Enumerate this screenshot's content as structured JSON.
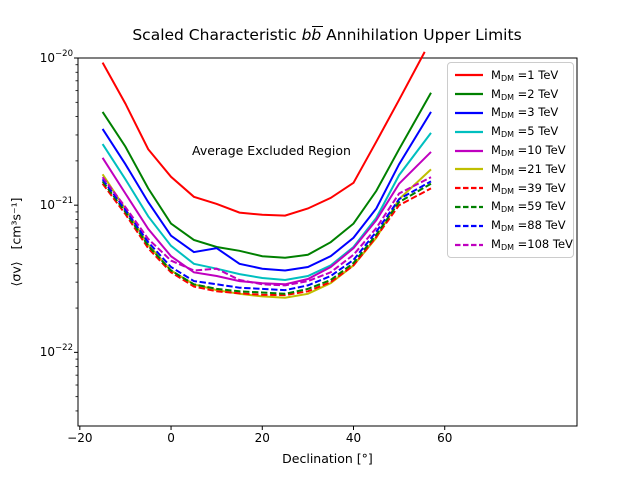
{
  "figure": {
    "title": {
      "prefix": "Scaled Characteristic ",
      "math_b1": "b",
      "math_b2": "b",
      "suffix": " Annihilation Upper Limits"
    },
    "annotation": "Average Excluded Region",
    "xlabel": "Declination [°]",
    "ylabel": "⟨σv⟩   [cm³s⁻¹]"
  },
  "chart_data": {
    "type": "line",
    "title": "Scaled Characteristic bb̄ Annihilation Upper Limits",
    "xlabel": "Declination [°]",
    "ylabel": "⟨σv⟩ [cm³ s⁻¹]",
    "xscale": "linear",
    "yscale": "log",
    "xlim": [
      -20.4,
      89.0
    ],
    "ylim": [
      3.16e-23,
      1e-20
    ],
    "grid": false,
    "legend_position": "upper right",
    "annotation_text": "Average Excluded Region",
    "xticks": [
      {
        "v": -20,
        "label": "−20"
      },
      {
        "v": 0,
        "label": "0"
      },
      {
        "v": 20,
        "label": "20"
      },
      {
        "v": 40,
        "label": "40"
      },
      {
        "v": 60,
        "label": "60"
      }
    ],
    "yticks": [
      {
        "v": 1e-20,
        "base": "10",
        "exp": "−20"
      },
      {
        "v": 1e-21,
        "base": "10",
        "exp": "−21"
      },
      {
        "v": 1e-22,
        "base": "10",
        "exp": "−22"
      }
    ],
    "series": [
      {
        "label_prefix": "M",
        "label_sub": "DM",
        "label_rest": " =1 TeV",
        "color": "#ff0000",
        "dash": false,
        "x": [
          -15,
          -10,
          -5,
          0,
          5,
          10,
          15,
          20,
          25,
          30,
          35,
          40,
          45,
          50,
          55.6
        ],
        "y": [
          9.3e-21,
          4.9e-21,
          2.4e-21,
          1.56e-21,
          1.14e-21,
          1.02e-21,
          8.9e-22,
          8.6e-22,
          8.5e-22,
          9.5e-22,
          1.12e-21,
          1.42e-21,
          2.7e-21,
          5.2e-21,
          1.1e-20
        ]
      },
      {
        "label_prefix": "M",
        "label_sub": "DM",
        "label_rest": " =2 TeV",
        "color": "#008000",
        "dash": false,
        "x": [
          -15,
          -10,
          -5,
          0,
          5,
          10,
          15,
          20,
          25,
          30,
          35,
          40,
          45,
          50,
          57
        ],
        "y": [
          4.3e-21,
          2.5e-21,
          1.3e-21,
          7.5e-22,
          5.8e-22,
          5.2e-22,
          4.9e-22,
          4.5e-22,
          4.4e-22,
          4.6e-22,
          5.6e-22,
          7.5e-22,
          1.25e-21,
          2.4e-21,
          5.8e-21
        ]
      },
      {
        "label_prefix": "M",
        "label_sub": "DM",
        "label_rest": " =3 TeV",
        "color": "#0000ff",
        "dash": false,
        "x": [
          -15,
          -10,
          -5,
          0,
          5,
          10,
          15,
          20,
          25,
          30,
          35,
          40,
          45,
          50,
          57
        ],
        "y": [
          3.3e-21,
          1.9e-21,
          1.05e-21,
          6.2e-22,
          4.8e-22,
          5.1e-22,
          4e-22,
          3.7e-22,
          3.6e-22,
          3.8e-22,
          4.5e-22,
          6e-22,
          9.5e-22,
          1.9e-21,
          4.3e-21
        ]
      },
      {
        "label_prefix": "M",
        "label_sub": "DM",
        "label_rest": " =5 TeV",
        "color": "#00bfbf",
        "dash": false,
        "x": [
          -15,
          -10,
          -5,
          0,
          5,
          10,
          15,
          20,
          25,
          30,
          35,
          40,
          45,
          50,
          57
        ],
        "y": [
          2.6e-21,
          1.5e-21,
          8.4e-22,
          5.3e-22,
          4e-22,
          3.7e-22,
          3.4e-22,
          3.2e-22,
          3.1e-22,
          3.3e-22,
          3.9e-22,
          5.2e-22,
          8.2e-22,
          1.6e-21,
          3.1e-21
        ]
      },
      {
        "label_prefix": "M",
        "label_sub": "DM",
        "label_rest": " =10 TeV",
        "color": "#bf00bf",
        "dash": false,
        "x": [
          -15,
          -10,
          -5,
          0,
          5,
          10,
          15,
          20,
          25,
          30,
          35,
          40,
          45,
          50,
          57
        ],
        "y": [
          2.1e-21,
          1.2e-21,
          6.9e-22,
          4.5e-22,
          3.5e-22,
          3.3e-22,
          3.05e-22,
          2.95e-22,
          2.9e-22,
          3.15e-22,
          3.8e-22,
          5.1e-22,
          7.9e-22,
          1.4e-21,
          2.3e-21
        ]
      },
      {
        "label_prefix": "M",
        "label_sub": "DM",
        "label_rest": " =21 TeV",
        "color": "#bfbf00",
        "dash": false,
        "x": [
          -15,
          -10,
          -5,
          0,
          5,
          10,
          15,
          20,
          25,
          30,
          35,
          40,
          45,
          50,
          57
        ],
        "y": [
          1.62e-21,
          9.4e-22,
          5.4e-22,
          3.6e-22,
          2.9e-22,
          2.65e-22,
          2.5e-22,
          2.4e-22,
          2.35e-22,
          2.5e-22,
          2.95e-22,
          3.9e-22,
          6e-22,
          1.1e-21,
          1.75e-21
        ]
      },
      {
        "label_prefix": "M",
        "label_sub": "DM",
        "label_rest": " =39 TeV",
        "color": "#ff0000",
        "dash": true,
        "x": [
          -15,
          -10,
          -5,
          0,
          5,
          10,
          15,
          20,
          25,
          30,
          35,
          40,
          45,
          50,
          57
        ],
        "y": [
          1.4e-21,
          8.7e-22,
          5.1e-22,
          3.5e-22,
          2.8e-22,
          2.6e-22,
          2.52e-22,
          2.46e-22,
          2.45e-22,
          2.6e-22,
          3e-22,
          3.9e-22,
          6.1e-22,
          1e-21,
          1.3e-21
        ]
      },
      {
        "label_prefix": "M",
        "label_sub": "DM",
        "label_rest": " =59 TeV",
        "color": "#008000",
        "dash": true,
        "x": [
          -15,
          -10,
          -5,
          0,
          5,
          10,
          15,
          20,
          25,
          30,
          35,
          40,
          45,
          50,
          57
        ],
        "y": [
          1.45e-21,
          9e-22,
          5.3e-22,
          3.6e-22,
          2.9e-22,
          2.7e-22,
          2.6e-22,
          2.55e-22,
          2.5e-22,
          2.7e-22,
          3.1e-22,
          4.05e-22,
          6.3e-22,
          1.05e-21,
          1.4e-21
        ]
      },
      {
        "label_prefix": "M",
        "label_sub": "DM",
        "label_rest": " =88 TeV",
        "color": "#0000ff",
        "dash": true,
        "x": [
          -15,
          -10,
          -5,
          0,
          5,
          10,
          15,
          20,
          25,
          30,
          35,
          40,
          45,
          50,
          57
        ],
        "y": [
          1.5e-21,
          9.3e-22,
          5.6e-22,
          3.8e-22,
          3.05e-22,
          2.9e-22,
          2.75e-22,
          2.7e-22,
          2.65e-22,
          2.85e-22,
          3.3e-22,
          4.25e-22,
          6.6e-22,
          1.1e-21,
          1.45e-21
        ]
      },
      {
        "label_prefix": "M",
        "label_sub": "DM",
        "label_rest": " =108 TeV",
        "color": "#bf00bf",
        "dash": true,
        "x": [
          -15,
          -10,
          -5,
          0,
          5,
          10,
          15,
          20,
          25,
          30,
          35,
          40,
          45,
          50,
          57
        ],
        "y": [
          1.55e-21,
          9.7e-22,
          5.9e-22,
          4.2e-22,
          3.6e-22,
          3.7e-22,
          3.1e-22,
          2.9e-22,
          2.85e-22,
          3.05e-22,
          3.5e-22,
          4.6e-22,
          7e-22,
          1.2e-21,
          1.55e-21
        ]
      }
    ]
  }
}
